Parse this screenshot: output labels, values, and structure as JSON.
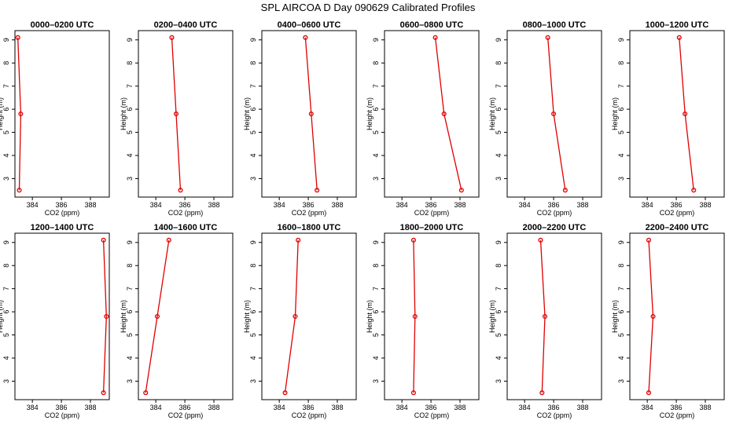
{
  "figure": {
    "title": "SPL AIRCOA D  Day 090629  Calibrated Profiles"
  },
  "style": {
    "line_color": "#e00000",
    "marker_color": "#e00000",
    "axis_color": "#000000",
    "background": "#ffffff"
  },
  "chart_data": [
    {
      "type": "line",
      "title": "0000–0200 UTC",
      "xlabel": "CO2 (ppm)",
      "ylabel": "Height (m)",
      "xlim": [
        382.8,
        389.3
      ],
      "ylim": [
        2.2,
        9.4
      ],
      "xticks": [
        384,
        386,
        388
      ],
      "yticks": [
        3,
        4,
        5,
        6,
        7,
        8,
        9
      ],
      "series": [
        {
          "x": [
            383.0,
            383.2,
            383.1
          ],
          "y": [
            9.1,
            5.8,
            2.5
          ]
        }
      ]
    },
    {
      "type": "line",
      "title": "0200–0400 UTC",
      "xlabel": "CO2 (ppm)",
      "ylabel": "Height (m)",
      "xlim": [
        382.8,
        389.3
      ],
      "ylim": [
        2.2,
        9.4
      ],
      "xticks": [
        384,
        386,
        388
      ],
      "yticks": [
        3,
        4,
        5,
        6,
        7,
        8,
        9
      ],
      "series": [
        {
          "x": [
            385.1,
            385.4,
            385.7
          ],
          "y": [
            9.1,
            5.8,
            2.5
          ]
        }
      ]
    },
    {
      "type": "line",
      "title": "0400–0600 UTC",
      "xlabel": "CO2 (ppm)",
      "ylabel": "Height (m)",
      "xlim": [
        382.8,
        389.3
      ],
      "ylim": [
        2.2,
        9.4
      ],
      "xticks": [
        384,
        386,
        388
      ],
      "yticks": [
        3,
        4,
        5,
        6,
        7,
        8,
        9
      ],
      "series": [
        {
          "x": [
            385.8,
            386.2,
            386.6
          ],
          "y": [
            9.1,
            5.8,
            2.5
          ]
        }
      ]
    },
    {
      "type": "line",
      "title": "0600–0800 UTC",
      "xlabel": "CO2 (ppm)",
      "ylabel": "Height (m)",
      "xlim": [
        382.8,
        389.3
      ],
      "ylim": [
        2.2,
        9.4
      ],
      "xticks": [
        384,
        386,
        388
      ],
      "yticks": [
        3,
        4,
        5,
        6,
        7,
        8,
        9
      ],
      "series": [
        {
          "x": [
            386.3,
            386.9,
            388.1
          ],
          "y": [
            9.1,
            5.8,
            2.5
          ]
        }
      ]
    },
    {
      "type": "line",
      "title": "0800–1000 UTC",
      "xlabel": "CO2 (ppm)",
      "ylabel": "Height (m)",
      "xlim": [
        382.8,
        389.3
      ],
      "ylim": [
        2.2,
        9.4
      ],
      "xticks": [
        384,
        386,
        388
      ],
      "yticks": [
        3,
        4,
        5,
        6,
        7,
        8,
        9
      ],
      "series": [
        {
          "x": [
            385.6,
            386.0,
            386.8
          ],
          "y": [
            9.1,
            5.8,
            2.5
          ]
        }
      ]
    },
    {
      "type": "line",
      "title": "1000–1200 UTC",
      "xlabel": "CO2 (ppm)",
      "ylabel": "Height (m)",
      "xlim": [
        382.8,
        389.3
      ],
      "ylim": [
        2.2,
        9.4
      ],
      "xticks": [
        384,
        386,
        388
      ],
      "yticks": [
        3,
        4,
        5,
        6,
        7,
        8,
        9
      ],
      "series": [
        {
          "x": [
            386.2,
            386.6,
            387.2
          ],
          "y": [
            9.1,
            5.8,
            2.5
          ]
        }
      ]
    },
    {
      "type": "line",
      "title": "1200–1400 UTC",
      "xlabel": "CO2 (ppm)",
      "ylabel": "Height (m)",
      "xlim": [
        382.8,
        389.3
      ],
      "ylim": [
        2.2,
        9.4
      ],
      "xticks": [
        384,
        386,
        388
      ],
      "yticks": [
        3,
        4,
        5,
        6,
        7,
        8,
        9
      ],
      "series": [
        {
          "x": [
            388.9,
            389.1,
            388.9
          ],
          "y": [
            9.1,
            5.8,
            2.5
          ]
        }
      ]
    },
    {
      "type": "line",
      "title": "1400–1600 UTC",
      "xlabel": "CO2 (ppm)",
      "ylabel": "Height (m)",
      "xlim": [
        382.8,
        389.3
      ],
      "ylim": [
        2.2,
        9.4
      ],
      "xticks": [
        384,
        386,
        388
      ],
      "yticks": [
        3,
        4,
        5,
        6,
        7,
        8,
        9
      ],
      "series": [
        {
          "x": [
            384.9,
            384.1,
            383.3
          ],
          "y": [
            9.1,
            5.8,
            2.5
          ]
        }
      ]
    },
    {
      "type": "line",
      "title": "1600–1800 UTC",
      "xlabel": "CO2 (ppm)",
      "ylabel": "Height (m)",
      "xlim": [
        382.8,
        389.3
      ],
      "ylim": [
        2.2,
        9.4
      ],
      "xticks": [
        384,
        386,
        388
      ],
      "yticks": [
        3,
        4,
        5,
        6,
        7,
        8,
        9
      ],
      "series": [
        {
          "x": [
            385.3,
            385.1,
            384.4
          ],
          "y": [
            9.1,
            5.8,
            2.5
          ]
        }
      ]
    },
    {
      "type": "line",
      "title": "1800–2000 UTC",
      "xlabel": "CO2 (ppm)",
      "ylabel": "Height (m)",
      "xlim": [
        382.8,
        389.3
      ],
      "ylim": [
        2.2,
        9.4
      ],
      "xticks": [
        384,
        386,
        388
      ],
      "yticks": [
        3,
        4,
        5,
        6,
        7,
        8,
        9
      ],
      "series": [
        {
          "x": [
            384.8,
            384.9,
            384.8
          ],
          "y": [
            9.1,
            5.8,
            2.5
          ]
        }
      ]
    },
    {
      "type": "line",
      "title": "2000–2200 UTC",
      "xlabel": "CO2 (ppm)",
      "ylabel": "Height (m)",
      "xlim": [
        382.8,
        389.3
      ],
      "ylim": [
        2.2,
        9.4
      ],
      "xticks": [
        384,
        386,
        388
      ],
      "yticks": [
        3,
        4,
        5,
        6,
        7,
        8,
        9
      ],
      "series": [
        {
          "x": [
            385.1,
            385.4,
            385.2
          ],
          "y": [
            9.1,
            5.8,
            2.5
          ]
        }
      ]
    },
    {
      "type": "line",
      "title": "2200–2400 UTC",
      "xlabel": "CO2 (ppm)",
      "ylabel": "Height (m)",
      "xlim": [
        382.8,
        389.3
      ],
      "ylim": [
        2.2,
        9.4
      ],
      "xticks": [
        384,
        386,
        388
      ],
      "yticks": [
        3,
        4,
        5,
        6,
        7,
        8,
        9
      ],
      "series": [
        {
          "x": [
            384.1,
            384.4,
            384.1
          ],
          "y": [
            9.1,
            5.8,
            2.5
          ]
        }
      ]
    }
  ]
}
